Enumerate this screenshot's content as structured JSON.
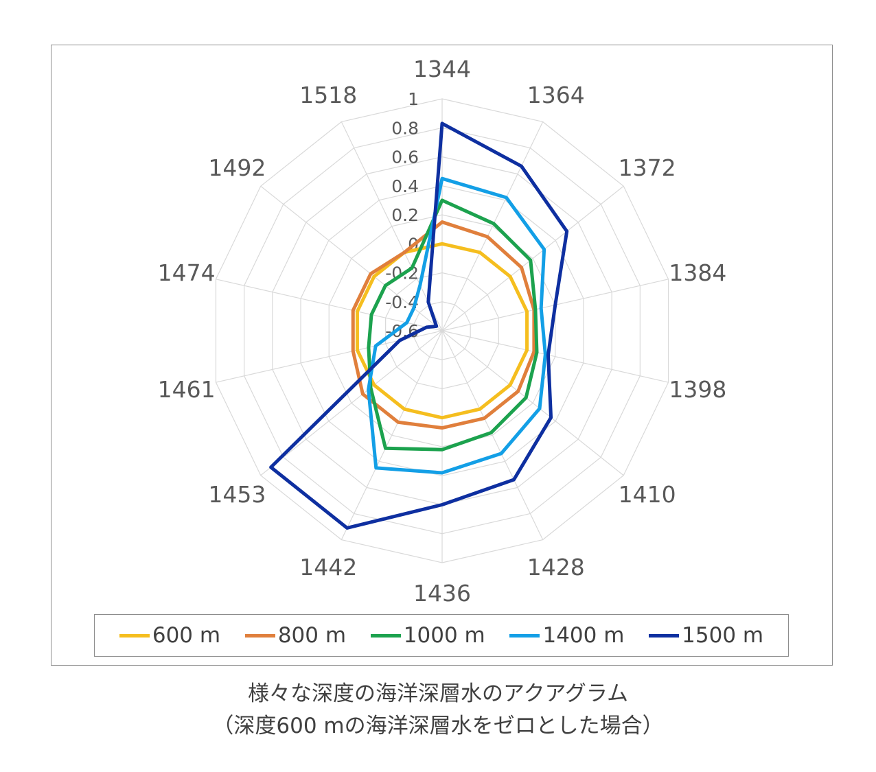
{
  "chart_data": {
    "type": "radar",
    "categories": [
      "1344",
      "1364",
      "1372",
      "1384",
      "1398",
      "1410",
      "1428",
      "1436",
      "1442",
      "1453",
      "1461",
      "1474",
      "1492",
      "1518"
    ],
    "rlim": [
      -0.6,
      1
    ],
    "ticks": [
      "1",
      "0.8",
      "0.6",
      "0.4",
      "0.2",
      "0",
      "-0.2",
      "-0.4",
      "-0.6"
    ],
    "tick_values": [
      1,
      0.8,
      0.6,
      0.4,
      0.2,
      0,
      -0.2,
      -0.4,
      -0.6
    ],
    "grid": true,
    "legend_position": "bottom",
    "series": [
      {
        "name": "600 m",
        "color": "#F5BE1F",
        "values": [
          0.0,
          0.0,
          0.0,
          0.0,
          0.0,
          0.0,
          0.0,
          0.0,
          0.0,
          0.0,
          0.0,
          0.0,
          0.0,
          0.0
        ]
      },
      {
        "name": "800 m",
        "color": "#E07F3C",
        "values": [
          0.15,
          0.12,
          0.1,
          0.05,
          0.05,
          0.07,
          0.07,
          0.07,
          0.1,
          0.1,
          0.03,
          0.03,
          0.03,
          0.0
        ]
      },
      {
        "name": "1000 m",
        "color": "#1CA24E",
        "values": [
          0.3,
          0.22,
          0.18,
          0.06,
          0.07,
          0.14,
          0.18,
          0.22,
          0.3,
          0.03,
          -0.08,
          -0.1,
          -0.1,
          -0.12
        ]
      },
      {
        "name": "1400 m",
        "color": "#139FE6",
        "values": [
          0.45,
          0.42,
          0.3,
          0.1,
          0.13,
          0.26,
          0.34,
          0.38,
          0.45,
          0.05,
          -0.13,
          -0.35,
          -0.35,
          -0.25
        ]
      },
      {
        "name": "1500 m",
        "color": "#0E2FA0",
        "values": [
          0.83,
          0.66,
          0.5,
          0.2,
          0.15,
          0.36,
          0.54,
          0.6,
          0.91,
          0.91,
          -0.3,
          -0.49,
          -0.55,
          -0.38
        ]
      }
    ]
  },
  "caption": {
    "line1": "様々な深度の海洋深層水のアクアグラム",
    "line2": "（深度600 mの海洋深層水をゼロとした場合）"
  }
}
